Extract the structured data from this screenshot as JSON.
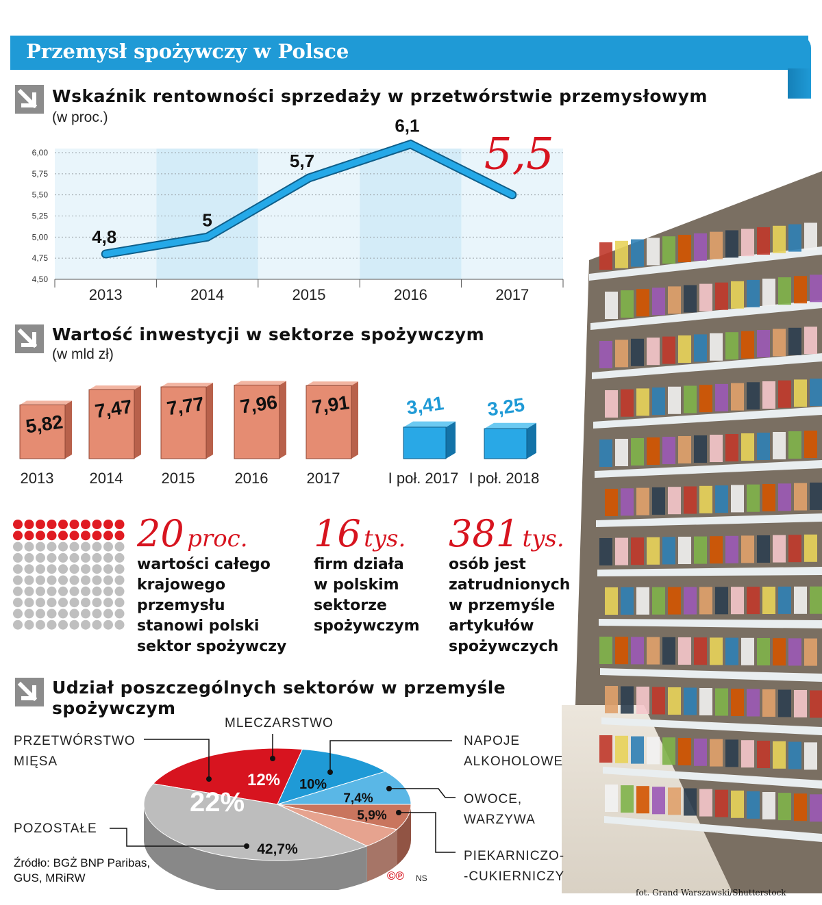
{
  "banner": {
    "title": "Przemysł spożywczy w Polsce"
  },
  "colors": {
    "accent_blue": "#1f9ad6",
    "accent_red": "#d7141f",
    "bar_salmon": "#e58c72",
    "bar_blue": "#29a8e6"
  },
  "icons": {
    "section_arrow": "arrow-down-right-icon"
  },
  "chart_data": [
    {
      "type": "line",
      "title": "Wskaźnik rentowności sprzedaży w przetwórstwie przemysłowym",
      "subtitle": "(w proc.)",
      "x": [
        "2013",
        "2014",
        "2015",
        "2016",
        "2017"
      ],
      "values": [
        4.8,
        5.0,
        5.7,
        6.1,
        5.5
      ],
      "data_labels": [
        "4,8",
        "5",
        "5,7",
        "6,1",
        "5,5"
      ],
      "ylim": [
        4.5,
        6.0
      ],
      "yticks": [
        "6,00",
        "5,75",
        "5,50",
        "5,25",
        "5,00",
        "4,75",
        "4,50"
      ],
      "ytick_values": [
        6.0,
        5.75,
        5.5,
        5.25,
        5.0,
        4.75,
        4.5
      ],
      "grid": true,
      "highlight_last": true
    },
    {
      "type": "bar",
      "title": "Wartość inwestycji w sektorze spożywczym",
      "subtitle": "(w mld zł)",
      "categories": [
        "2013",
        "2014",
        "2015",
        "2016",
        "2017",
        "I poł. 2017",
        "I poł. 2018"
      ],
      "values": [
        5.82,
        7.47,
        7.77,
        7.96,
        7.91,
        3.41,
        3.25
      ],
      "data_labels": [
        "5,82",
        "7,47",
        "7,77",
        "7,96",
        "7,91",
        "3,41",
        "3,25"
      ],
      "bar_colors": [
        "salmon",
        "salmon",
        "salmon",
        "salmon",
        "salmon",
        "blue",
        "blue"
      ]
    },
    {
      "type": "pie",
      "title": "Udział poszczególnych sektorów w przemyśle spożywczym",
      "slices": [
        {
          "label": "PRZETWÓRSTWO MIĘSA",
          "value": 22,
          "display": "22%",
          "color": "#d7141f"
        },
        {
          "label": "MLECZARSTWO",
          "value": 12,
          "display": "12%",
          "color": "#1f9ad6"
        },
        {
          "label": "NAPOJE ALKOHOLOWE",
          "value": 10,
          "display": "10%",
          "color": "#5ab7e6"
        },
        {
          "label": "OWOCE, WARZYWA",
          "value": 7.4,
          "display": "7,4%",
          "color": "#c9755e"
        },
        {
          "label": "PIEKARNICZO--CUKIERNICZY",
          "value": 5.9,
          "display": "5,9%",
          "color": "#e6a38f"
        },
        {
          "label": "POZOSTAŁE",
          "value": 42.7,
          "display": "42,7%",
          "color": "#bdbdbd"
        }
      ]
    }
  ],
  "stats": {
    "dots": {
      "total": 100,
      "highlighted": 20
    },
    "items": [
      {
        "big_num": "20",
        "big_unit": "proc.",
        "lines": [
          "wartości całego",
          "krajowego",
          "przemysłu",
          "stanowi polski",
          "sektor spożywczy"
        ]
      },
      {
        "big_num": "16",
        "big_unit": "tys.",
        "lines": [
          "firm działa",
          "w polskim",
          "sektorze",
          "spożywczym"
        ]
      },
      {
        "big_num": "381",
        "big_unit": "tys.",
        "lines": [
          "osób jest",
          "zatrudnionych",
          "w przemyśle",
          "artykułów",
          "spożywczych"
        ]
      }
    ]
  },
  "pie_labels": {
    "meat": [
      "PRZETWÓRSTWO",
      "MIĘSA"
    ],
    "dairy": [
      "MLECZARSTWO"
    ],
    "alcohol": [
      "NAPOJE",
      "ALKOHOLOWE"
    ],
    "fruit": [
      "OWOCE,",
      "WARZYWA"
    ],
    "bakery": [
      "PIEKARNICZO-",
      "-CUKIERNICZY"
    ],
    "other": [
      "POZOSTAŁE"
    ]
  },
  "footer": {
    "source_lines": [
      "Źródło: BGŻ BNP Paribas,",
      "GUS, MRiRW"
    ],
    "copyright": "©℗",
    "author": "NS",
    "photo_credit": "fot. Grand Warszawski/Shutterstock"
  }
}
